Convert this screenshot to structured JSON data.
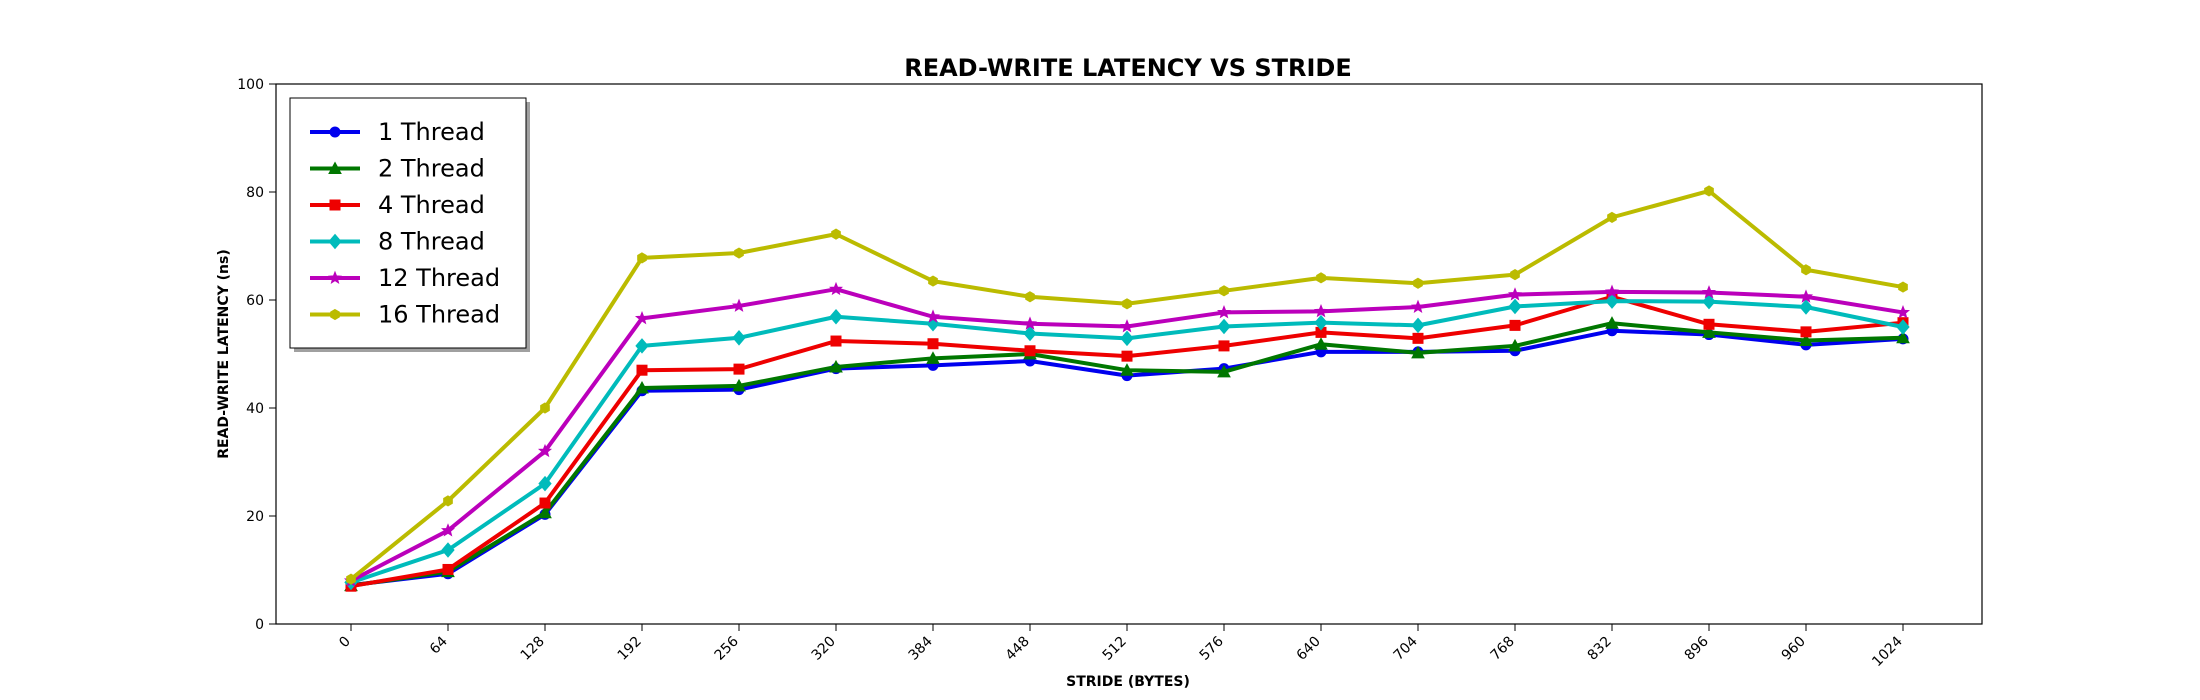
{
  "chart_data": {
    "type": "line",
    "title": "READ-WRITE LATENCY VS STRIDE",
    "xlabel": "STRIDE (BYTES)",
    "ylabel": "READ-WRITE LATENCY (ns)",
    "ylim": [
      0,
      100
    ],
    "yticks": [
      "0",
      "20",
      "40",
      "60",
      "80",
      "100"
    ],
    "x": [
      "0",
      "64",
      "128",
      "192",
      "256",
      "320",
      "384",
      "448",
      "512",
      "576",
      "640",
      "704",
      "768",
      "832",
      "896",
      "960",
      "1024"
    ],
    "grid": false,
    "legend_position": "top-left",
    "series": [
      {
        "name": "1 Thread",
        "color": "#0000ee",
        "marker": "circle",
        "values": [
          7.2,
          9.3,
          20.3,
          43.2,
          43.4,
          47.3,
          47.9,
          48.7,
          46.0,
          47.3,
          50.4,
          50.4,
          50.6,
          54.3,
          53.6,
          51.7,
          52.8
        ]
      },
      {
        "name": "2 Thread",
        "color": "#007700",
        "marker": "triangle",
        "values": [
          7.1,
          9.7,
          20.6,
          43.7,
          44.1,
          47.6,
          49.2,
          50.0,
          47.0,
          46.7,
          51.8,
          50.2,
          51.5,
          55.7,
          54.0,
          52.5,
          53.0
        ]
      },
      {
        "name": "4 Thread",
        "color": "#ee0000",
        "marker": "square",
        "values": [
          7.0,
          10.1,
          22.4,
          47.0,
          47.2,
          52.4,
          51.9,
          50.6,
          49.6,
          51.5,
          54.0,
          52.9,
          55.3,
          60.6,
          55.5,
          54.1,
          55.8
        ]
      },
      {
        "name": "8 Thread",
        "color": "#00bbbb",
        "marker": "diamond",
        "values": [
          7.7,
          13.7,
          26.0,
          51.5,
          53.0,
          56.9,
          55.6,
          53.8,
          52.9,
          55.1,
          55.8,
          55.3,
          58.8,
          59.8,
          59.7,
          58.7,
          55.0
        ]
      },
      {
        "name": "12 Thread",
        "color": "#bb00bb",
        "marker": "star",
        "values": [
          8.0,
          17.3,
          32.0,
          56.6,
          58.9,
          62.0,
          56.9,
          55.6,
          55.1,
          57.7,
          57.9,
          58.7,
          61.0,
          61.5,
          61.4,
          60.6,
          57.7
        ]
      },
      {
        "name": "16 Thread",
        "color": "#bbbb00",
        "marker": "hexagon",
        "values": [
          8.3,
          22.8,
          40.0,
          67.8,
          68.7,
          72.2,
          63.5,
          60.6,
          59.3,
          61.7,
          64.1,
          63.1,
          64.7,
          75.3,
          80.2,
          65.6,
          62.4
        ]
      }
    ]
  }
}
